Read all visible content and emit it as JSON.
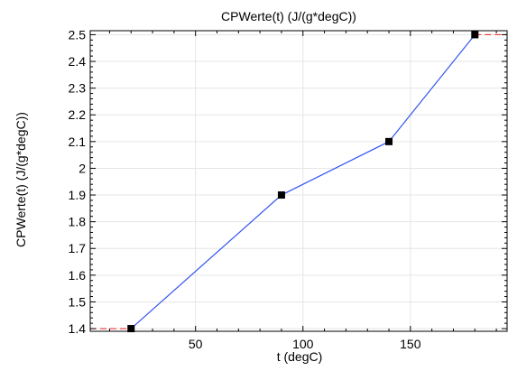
{
  "chart_data": {
    "type": "line",
    "title": "CPWerte(t) (J/(g*degC))",
    "xlabel": "t (degC)",
    "ylabel": "CPWerte(t) (J/(g*degC))",
    "xlim": [
      1,
      195
    ],
    "ylim": [
      1.39,
      2.515
    ],
    "xticks": [
      50,
      100,
      150
    ],
    "xtick_labels": [
      "50",
      "100",
      "150"
    ],
    "yticks": [
      1.4,
      1.5,
      1.6,
      1.7,
      1.8,
      1.9,
      2.0,
      2.1,
      2.2,
      2.3,
      2.4,
      2.5
    ],
    "ytick_labels": [
      "1.4",
      "1.5",
      "1.6",
      "1.7",
      "1.8",
      "1.9",
      "2",
      "2.1",
      "2.2",
      "2.3",
      "2.4",
      "2.5"
    ],
    "grid": true,
    "series": [
      {
        "x": [
          20,
          90,
          140,
          180
        ],
        "y": [
          1.4,
          1.9,
          2.1,
          2.5
        ],
        "color": "#3355ee",
        "marker": "square",
        "marker_color": "#000000"
      }
    ],
    "extrapolation": {
      "color": "#ee3333",
      "style": "dashed",
      "left": {
        "x": [
          1,
          20
        ],
        "y": [
          1.4,
          1.4
        ]
      },
      "right": {
        "x": [
          180,
          195
        ],
        "y": [
          2.5,
          2.5
        ]
      }
    }
  }
}
